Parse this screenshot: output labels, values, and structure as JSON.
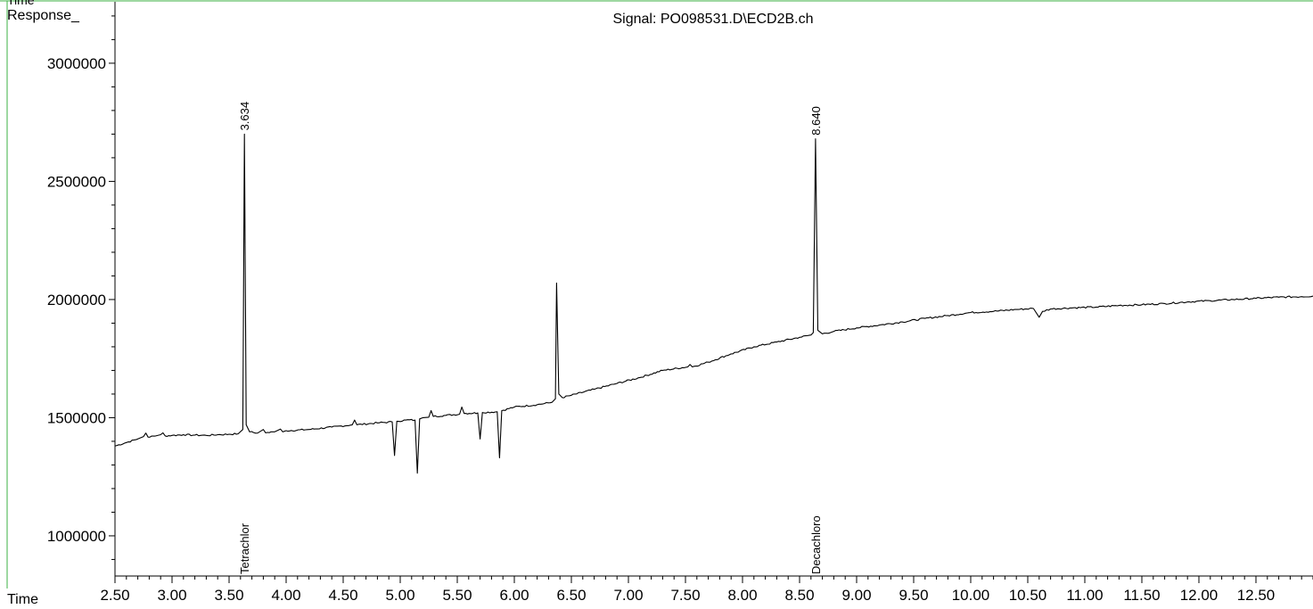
{
  "header": {
    "corner_label": "Time",
    "response_label": "Response_",
    "signal_title": "Signal: PO098531.D\\ECD2B.ch"
  },
  "chart_data": {
    "type": "line",
    "title": "Signal: PO098531.D\\ECD2B.ch",
    "xlabel": "Time",
    "ylabel": "Response_",
    "xlim": [
      2.5,
      13.0
    ],
    "ylim": [
      830000,
      3260000
    ],
    "x_ticks": [
      "2.50",
      "3.00",
      "3.50",
      "4.00",
      "4.50",
      "5.00",
      "5.50",
      "6.00",
      "6.50",
      "7.00",
      "7.50",
      "8.00",
      "8.50",
      "9.00",
      "9.50",
      "10.00",
      "10.50",
      "11.00",
      "11.50",
      "12.00",
      "12.50"
    ],
    "y_ticks": [
      "1000000",
      "1500000",
      "2000000",
      "2500000",
      "3000000"
    ],
    "grid": false,
    "colors": {
      "trace": "#000000",
      "frame": "#3cb043",
      "baseline_fill": "#8fb6e6"
    },
    "series": [
      {
        "points": [
          [
            2.5,
            1380000
          ],
          [
            2.6,
            1395000
          ],
          [
            2.7,
            1410000
          ],
          [
            2.75,
            1420000
          ],
          [
            2.77,
            1435000
          ],
          [
            2.79,
            1418000
          ],
          [
            2.85,
            1422000
          ],
          [
            2.9,
            1428000
          ],
          [
            2.92,
            1436000
          ],
          [
            2.94,
            1423000
          ],
          [
            3.0,
            1425000
          ],
          [
            3.1,
            1428000
          ],
          [
            3.2,
            1426000
          ],
          [
            3.3,
            1425000
          ],
          [
            3.4,
            1428000
          ],
          [
            3.5,
            1430000
          ],
          [
            3.58,
            1432000
          ],
          [
            3.62,
            1450000
          ],
          [
            3.634,
            2700000
          ],
          [
            3.65,
            1470000
          ],
          [
            3.68,
            1440000
          ],
          [
            3.75,
            1435000
          ],
          [
            3.8,
            1450000
          ],
          [
            3.82,
            1436000
          ],
          [
            3.9,
            1440000
          ],
          [
            3.95,
            1452000
          ],
          [
            3.97,
            1440000
          ],
          [
            4.0,
            1445000
          ],
          [
            4.2,
            1450000
          ],
          [
            4.4,
            1460000
          ],
          [
            4.58,
            1470000
          ],
          [
            4.6,
            1490000
          ],
          [
            4.62,
            1470000
          ],
          [
            4.8,
            1478000
          ],
          [
            4.93,
            1482000
          ],
          [
            4.95,
            1340000
          ],
          [
            4.97,
            1485000
          ],
          [
            5.05,
            1490000
          ],
          [
            5.13,
            1490000
          ],
          [
            5.15,
            1265000
          ],
          [
            5.17,
            1495000
          ],
          [
            5.2,
            1500000
          ],
          [
            5.25,
            1502000
          ],
          [
            5.27,
            1530000
          ],
          [
            5.29,
            1505000
          ],
          [
            5.4,
            1510000
          ],
          [
            5.52,
            1515000
          ],
          [
            5.54,
            1545000
          ],
          [
            5.56,
            1518000
          ],
          [
            5.68,
            1520000
          ],
          [
            5.7,
            1410000
          ],
          [
            5.72,
            1522000
          ],
          [
            5.85,
            1525000
          ],
          [
            5.87,
            1330000
          ],
          [
            5.89,
            1530000
          ],
          [
            6.0,
            1545000
          ],
          [
            6.2,
            1555000
          ],
          [
            6.33,
            1565000
          ],
          [
            6.36,
            1580000
          ],
          [
            6.37,
            2070000
          ],
          [
            6.39,
            1600000
          ],
          [
            6.42,
            1585000
          ],
          [
            6.5,
            1595000
          ],
          [
            6.7,
            1620000
          ],
          [
            6.9,
            1645000
          ],
          [
            7.1,
            1670000
          ],
          [
            7.3,
            1700000
          ],
          [
            7.52,
            1715000
          ],
          [
            7.54,
            1725000
          ],
          [
            7.56,
            1715000
          ],
          [
            7.7,
            1735000
          ],
          [
            7.9,
            1770000
          ],
          [
            8.1,
            1800000
          ],
          [
            8.3,
            1820000
          ],
          [
            8.5,
            1840000
          ],
          [
            8.6,
            1850000
          ],
          [
            8.62,
            1860000
          ],
          [
            8.64,
            2680000
          ],
          [
            8.66,
            1870000
          ],
          [
            8.7,
            1855000
          ],
          [
            8.8,
            1865000
          ],
          [
            9.0,
            1880000
          ],
          [
            9.2,
            1892000
          ],
          [
            9.4,
            1905000
          ],
          [
            9.6,
            1920000
          ],
          [
            9.8,
            1932000
          ],
          [
            10.0,
            1945000
          ],
          [
            10.2,
            1950000
          ],
          [
            10.4,
            1958000
          ],
          [
            10.55,
            1962000
          ],
          [
            10.6,
            1925000
          ],
          [
            10.63,
            1950000
          ],
          [
            10.7,
            1960000
          ],
          [
            10.9,
            1965000
          ],
          [
            11.1,
            1968000
          ],
          [
            11.3,
            1975000
          ],
          [
            11.5,
            1978000
          ],
          [
            11.7,
            1983000
          ],
          [
            11.9,
            1990000
          ],
          [
            12.1,
            1995000
          ],
          [
            12.3,
            2000000
          ],
          [
            12.5,
            2005000
          ],
          [
            12.7,
            2010000
          ],
          [
            12.9,
            2012000
          ],
          [
            13.0,
            2015000
          ]
        ]
      }
    ],
    "peak_labels": [
      {
        "x": 3.634,
        "y": 2700000,
        "label": "3.634"
      },
      {
        "x": 8.64,
        "y": 2680000,
        "label": "8.640"
      }
    ],
    "compound_labels": [
      {
        "x": 3.634,
        "label": "Tetrachlor"
      },
      {
        "x": 8.64,
        "label": "Decachloro"
      }
    ]
  }
}
